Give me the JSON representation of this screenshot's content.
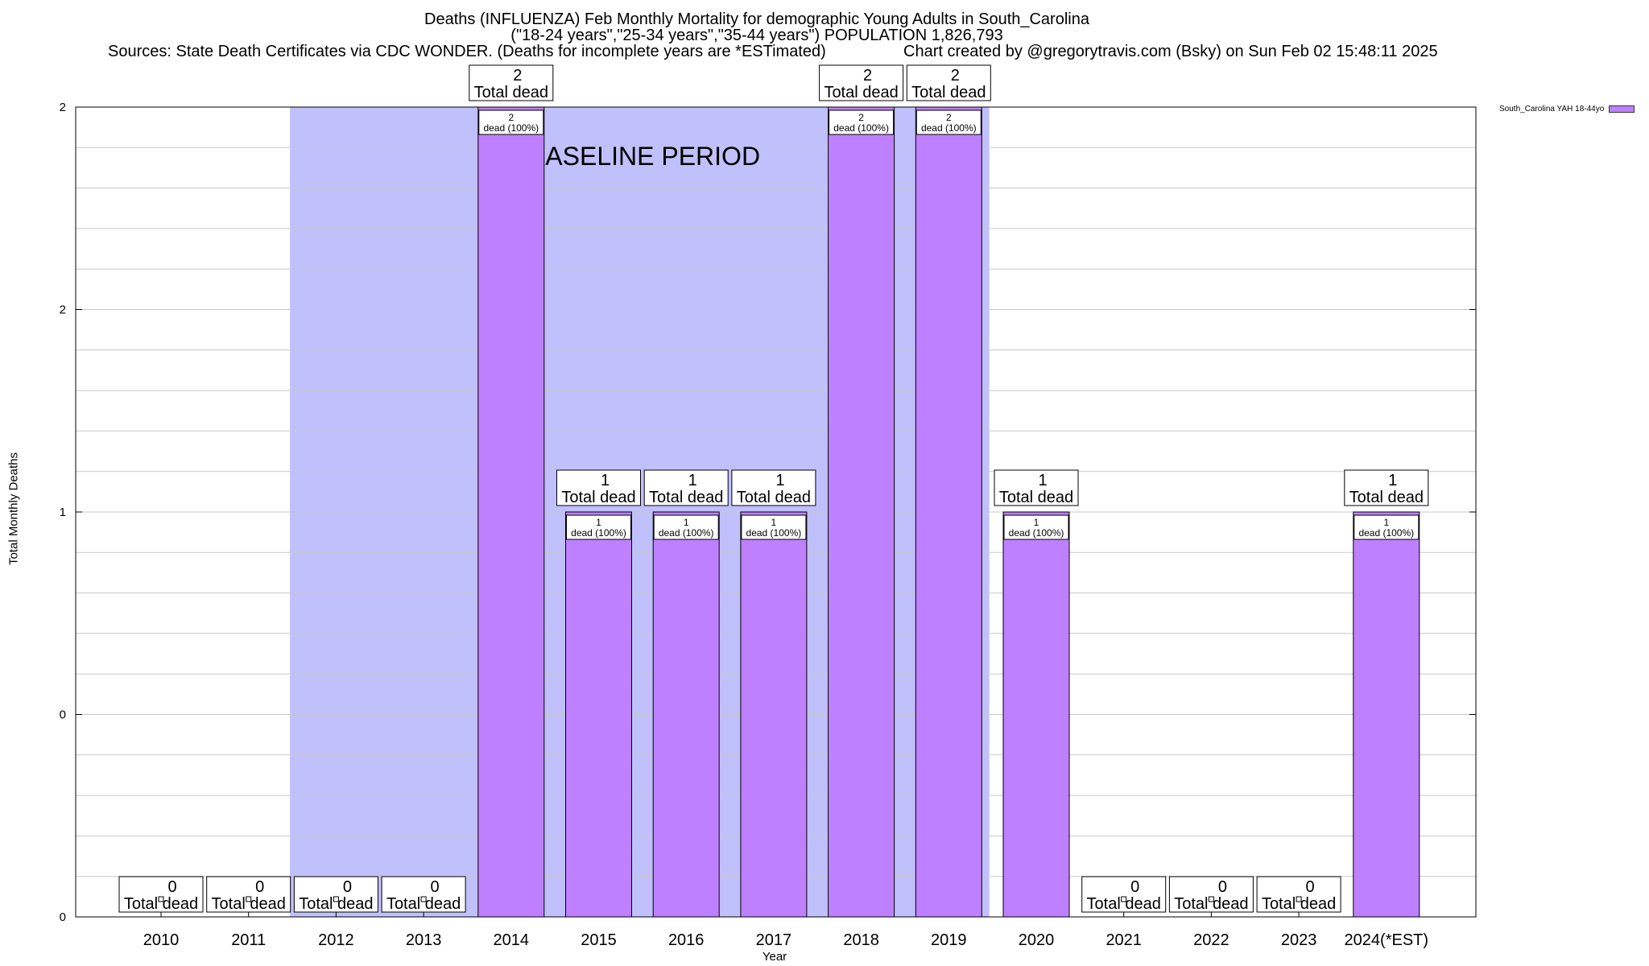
{
  "title_lines": [
    "Deaths (INFLUENZA) Feb Monthly Mortality for demographic Young Adults in South_Carolina",
    "(\"18-24 years\",\"25-34 years\",\"35-44 years\") POPULATION 1,826,793"
  ],
  "sources": "Sources: State Death Certificates via CDC WONDER. (Deaths for incomplete years are *ESTimated)",
  "credit": "Chart created by @gregorytravis.com (Bsky) on Sun Feb 02 15:48:11 2025",
  "baseline_label": "BASELINE PERIOD",
  "colors": {
    "bar": "#bf80ff",
    "baseline": "#c0c0fc",
    "legend_swatch": "#bf80ff"
  },
  "chart_data": {
    "type": "bar",
    "xlabel": "Year",
    "ylabel": "Total Monthly Deaths",
    "ylim": [
      0,
      2
    ],
    "y_tick_labels": [
      "0",
      "0",
      "1",
      "2",
      "2"
    ],
    "grid": true,
    "legend_position": "top-right",
    "categories": [
      "2010",
      "2011",
      "2012",
      "2013",
      "2014",
      "2015",
      "2016",
      "2017",
      "2018",
      "2019",
      "2020",
      "2021",
      "2022",
      "2023",
      "2024(*EST)"
    ],
    "series": [
      {
        "name": "South_Carolina YAH 18-44yo",
        "values": [
          0,
          0,
          0,
          0,
          2,
          1,
          1,
          1,
          2,
          2,
          1,
          0,
          0,
          0,
          1
        ]
      }
    ],
    "total_label_suffix": "Total dead",
    "inner_label_suffix": "dead (100%)",
    "baseline_period": {
      "start": "2012",
      "end": "2019"
    }
  }
}
